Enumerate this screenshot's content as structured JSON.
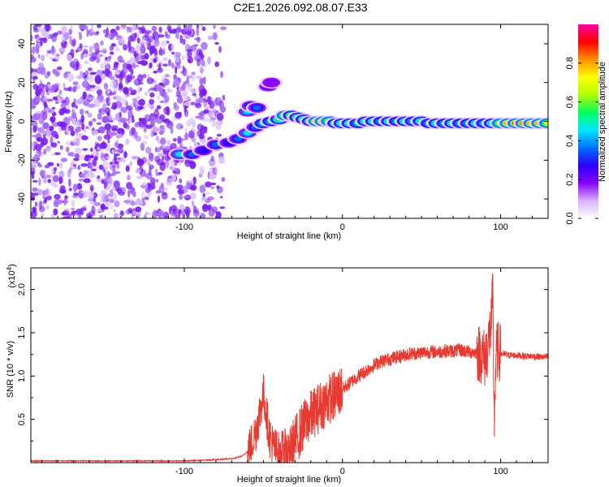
{
  "title": "C2E1.2026.092.08.07.E33",
  "chart_data": [
    {
      "type": "heatmap",
      "name": "spectrogram",
      "xlabel": "Height of straight line (km)",
      "ylabel": "Frequency (Hz)",
      "xlim": [
        -197,
        130
      ],
      "ylim": [
        -50,
        50
      ],
      "xticks": [
        -100,
        0,
        100
      ],
      "xtick_labels": [
        "-100",
        "0",
        "100"
      ],
      "yticks": [
        -40,
        -20,
        0,
        20,
        40
      ],
      "ytick_labels": [
        "-40",
        "-20",
        "0",
        "20",
        "40"
      ],
      "colorbar": {
        "label": "Normalized spectral amplitude",
        "range": [
          0,
          1
        ],
        "ticks": [
          0.0,
          0.2,
          0.4,
          0.6,
          0.8
        ],
        "tick_labels": [
          "0.0",
          "0.2",
          "0.4",
          "0.6",
          "0.8"
        ],
        "colors": [
          "#ffffff",
          "#d8b0ff",
          "#8a00ff",
          "#2a00ff",
          "#0070ff",
          "#00e8ff",
          "#00ff60",
          "#b0ff00",
          "#ffff00",
          "#ff9000",
          "#ff0000",
          "#ff00a0"
        ]
      },
      "noise_region": {
        "x_range": [
          -197,
          -75
        ],
        "amplitude": 0.15
      },
      "ridge": [
        {
          "x": -103,
          "y": -17,
          "amp": 0.35
        },
        {
          "x": -95,
          "y": -17,
          "amp": 0.3
        },
        {
          "x": -88,
          "y": -15,
          "amp": 0.2
        },
        {
          "x": -80,
          "y": -12,
          "amp": 0.3
        },
        {
          "x": -72,
          "y": -11,
          "amp": 0.2
        },
        {
          "x": -66,
          "y": -9,
          "amp": 0.3
        },
        {
          "x": -60,
          "y": -6,
          "amp": 0.35
        },
        {
          "x": -55,
          "y": -3,
          "amp": 0.3
        },
        {
          "x": -50,
          "y": -1,
          "amp": 0.4
        },
        {
          "x": -45,
          "y": 0,
          "amp": 0.45
        },
        {
          "x": -40,
          "y": 1,
          "amp": 0.55
        },
        {
          "x": -36,
          "y": 3,
          "amp": 0.75
        },
        {
          "x": -32,
          "y": 3,
          "amp": 0.65
        },
        {
          "x": -28,
          "y": 2,
          "amp": 0.55
        },
        {
          "x": -24,
          "y": 1,
          "amp": 0.5
        },
        {
          "x": -20,
          "y": 0,
          "amp": 0.6
        },
        {
          "x": -16,
          "y": 0,
          "amp": 0.8
        },
        {
          "x": -12,
          "y": 0,
          "amp": 0.9
        },
        {
          "x": -8,
          "y": 0,
          "amp": 0.7
        },
        {
          "x": -4,
          "y": -1,
          "amp": 0.5
        },
        {
          "x": 0,
          "y": -1,
          "amp": 0.5
        },
        {
          "x": 5,
          "y": -1,
          "amp": 0.55
        },
        {
          "x": 10,
          "y": -1,
          "amp": 0.45
        },
        {
          "x": 15,
          "y": 0,
          "amp": 0.5
        },
        {
          "x": 20,
          "y": 0,
          "amp": 0.5
        },
        {
          "x": 25,
          "y": 0,
          "amp": 0.45
        },
        {
          "x": 30,
          "y": 0,
          "amp": 0.5
        },
        {
          "x": 35,
          "y": 0,
          "amp": 0.45
        },
        {
          "x": 40,
          "y": 0,
          "amp": 0.5
        },
        {
          "x": 45,
          "y": 0,
          "amp": 0.45
        },
        {
          "x": 50,
          "y": 0,
          "amp": 0.5
        },
        {
          "x": 55,
          "y": -1,
          "amp": 0.45
        },
        {
          "x": 60,
          "y": -1,
          "amp": 0.5
        },
        {
          "x": 65,
          "y": -1,
          "amp": 0.45
        },
        {
          "x": 70,
          "y": -1,
          "amp": 0.5
        },
        {
          "x": 75,
          "y": -1,
          "amp": 0.45
        },
        {
          "x": 80,
          "y": -1,
          "amp": 0.45
        },
        {
          "x": 85,
          "y": -1,
          "amp": 0.5
        },
        {
          "x": 90,
          "y": -1,
          "amp": 0.45
        },
        {
          "x": 95,
          "y": -1,
          "amp": 0.5
        },
        {
          "x": 100,
          "y": -1,
          "amp": 0.7
        },
        {
          "x": 105,
          "y": -1,
          "amp": 0.85
        },
        {
          "x": 110,
          "y": -1,
          "amp": 0.9
        },
        {
          "x": 115,
          "y": -1,
          "amp": 0.88
        },
        {
          "x": 120,
          "y": -1,
          "amp": 0.85
        },
        {
          "x": 125,
          "y": -1,
          "amp": 0.8
        },
        {
          "x": 130,
          "y": -1,
          "amp": 0.75
        }
      ],
      "branch": [
        {
          "x": -60,
          "y": 5,
          "amp": 0.35
        },
        {
          "x": -58,
          "y": 8,
          "amp": 0.3
        },
        {
          "x": -54,
          "y": 7,
          "amp": 0.25
        },
        {
          "x": -47,
          "y": 18,
          "amp": 0.15
        },
        {
          "x": -45,
          "y": 20,
          "amp": 0.1
        }
      ]
    },
    {
      "type": "line",
      "name": "snr",
      "xlabel": "Height of straight line (km)",
      "ylabel": "SNR (10 * v/v)",
      "scale_label": "(x10",
      "scale_exponent": "4",
      "scale_close": ")",
      "xlim": [
        -197,
        130
      ],
      "ylim": [
        0,
        2.25
      ],
      "xticks": [
        -100,
        0,
        100
      ],
      "xtick_labels": [
        "-100",
        "0",
        "100"
      ],
      "yticks": [
        0.5,
        1.0,
        1.5,
        2.0
      ],
      "ytick_labels": [
        "0.5",
        "1.0",
        "1.5",
        "2.0"
      ],
      "color": "#e83a30",
      "series": {
        "x": [
          -197,
          -150,
          -100,
          -85,
          -75,
          -68,
          -63,
          -59,
          -55,
          -52,
          -50,
          -48,
          -46,
          -44,
          -42,
          -40,
          -37,
          -34,
          -30,
          -26,
          -22,
          -18,
          -14,
          -10,
          -6,
          -2,
          2,
          6,
          10,
          14,
          18,
          22,
          26,
          30,
          35,
          40,
          45,
          50,
          55,
          60,
          65,
          70,
          75,
          80,
          85,
          88,
          90,
          92,
          94,
          95,
          96,
          97,
          98,
          100,
          105,
          110,
          115,
          120,
          125,
          130
        ],
        "y": [
          0.02,
          0.02,
          0.02,
          0.03,
          0.04,
          0.05,
          0.08,
          0.15,
          0.35,
          0.6,
          0.8,
          0.55,
          0.3,
          0.2,
          0.15,
          0.1,
          0.08,
          0.12,
          0.25,
          0.38,
          0.5,
          0.58,
          0.65,
          0.72,
          0.76,
          0.82,
          0.88,
          0.94,
          1.0,
          1.05,
          1.1,
          1.15,
          1.18,
          1.2,
          1.22,
          1.25,
          1.26,
          1.27,
          1.28,
          1.28,
          1.29,
          1.29,
          1.3,
          1.28,
          1.27,
          1.25,
          1.2,
          1.35,
          1.6,
          1.9,
          0.5,
          1.2,
          1.3,
          1.26,
          1.24,
          1.24,
          1.23,
          1.23,
          1.22,
          1.22
        ]
      },
      "noise": [
        {
          "x": [
            -60,
            -40
          ],
          "amp": 0.25
        },
        {
          "x": [
            -40,
            0
          ],
          "amp": 0.3
        },
        {
          "x": [
            0,
            85
          ],
          "amp": 0.08
        },
        {
          "x": [
            85,
            100
          ],
          "amp": 0.35
        },
        {
          "x": [
            100,
            130
          ],
          "amp": 0.04
        }
      ]
    }
  ]
}
